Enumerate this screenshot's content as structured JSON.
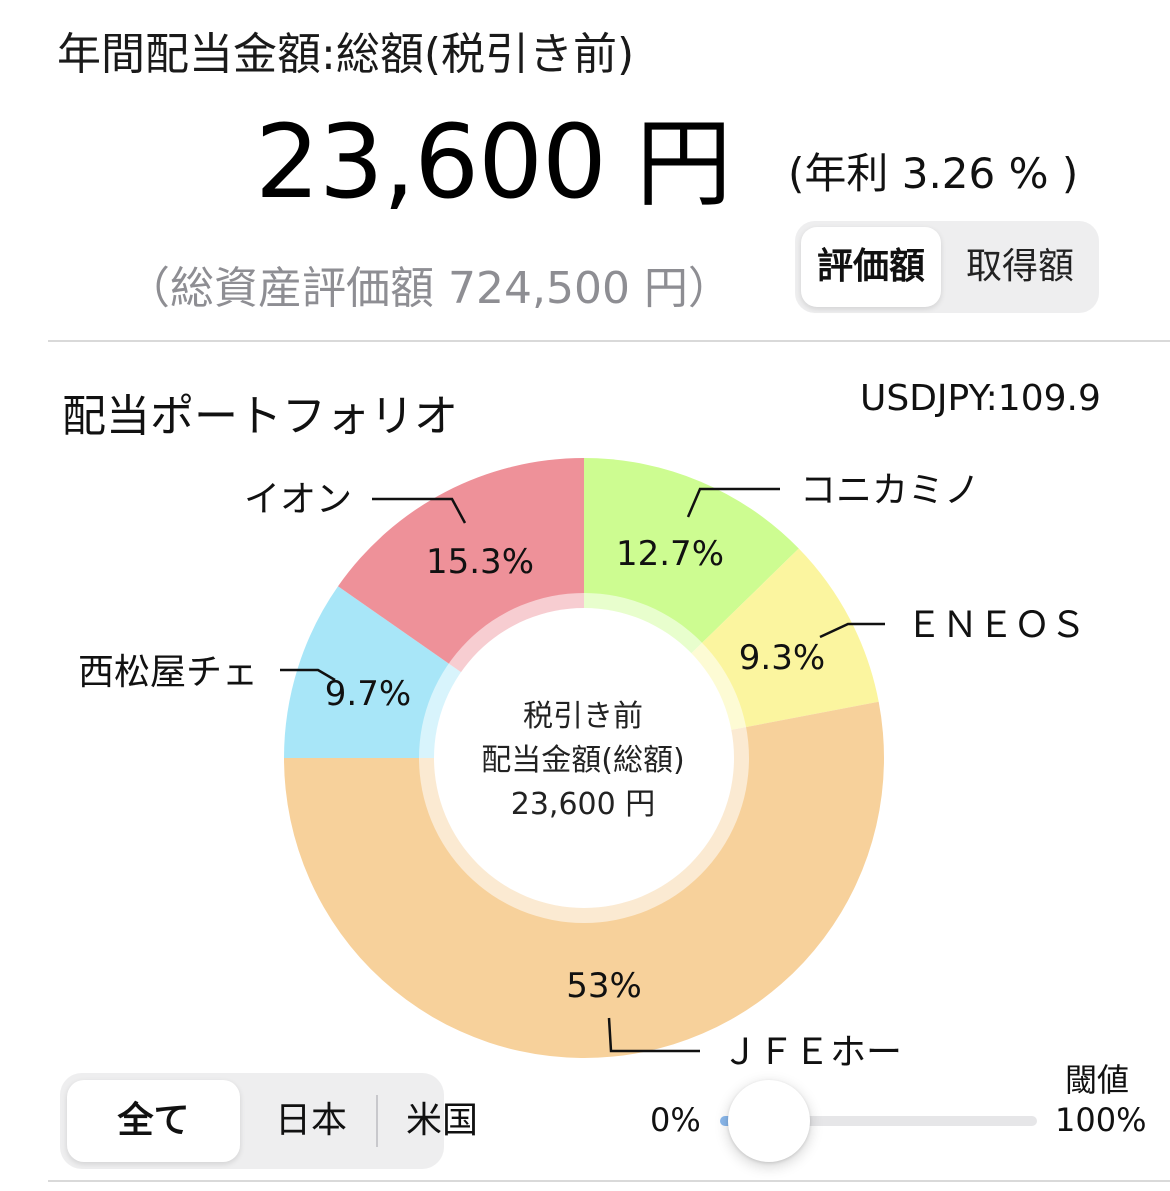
{
  "header": {
    "title": "年間配当金額:総額(税引き前)",
    "amount": "23,600",
    "amount_unit": "円",
    "yield_text": "(年利 3.26 % )",
    "total_asset_text": "（総資産評価額 724,500 円）"
  },
  "basis_toggle": {
    "options": [
      "評価額",
      "取得額"
    ],
    "selected": "評価額"
  },
  "portfolio": {
    "title": "配当ポートフォリオ",
    "fx_rate": "USDJPY:109.9",
    "center_label": {
      "line1": "税引き前",
      "line2": "配当金額(総額)",
      "line3": "23,600 円"
    }
  },
  "colors": {
    "コニカミノ": "#cdfc91",
    "ENEOS": "#fbf59f",
    "JFEホー": "#f7d19b",
    "西松屋チェ": "#a8e6f8",
    "イオン": "#ee9199",
    "slider_fill": "#8ab8ec"
  },
  "chart_data": {
    "type": "pie",
    "donut": true,
    "slices": [
      {
        "label": "コニカミノ",
        "value": 12.7,
        "display": "12.7%"
      },
      {
        "label": "ＥＮＥＯＳ",
        "value": 9.3,
        "display": "9.3%"
      },
      {
        "label": "ＪＦＥホー",
        "value": 53,
        "display": "53%"
      },
      {
        "label": "西松屋チェ",
        "value": 9.7,
        "display": "9.7%"
      },
      {
        "label": "イオン",
        "value": 15.3,
        "display": "15.3%"
      }
    ]
  },
  "region_tabs": {
    "tabs": [
      "全て",
      "日本",
      "米国"
    ],
    "selected": "全て"
  },
  "threshold": {
    "label": "閾値",
    "min_label": "0%",
    "max_label": "100%",
    "value_percent": 0
  }
}
